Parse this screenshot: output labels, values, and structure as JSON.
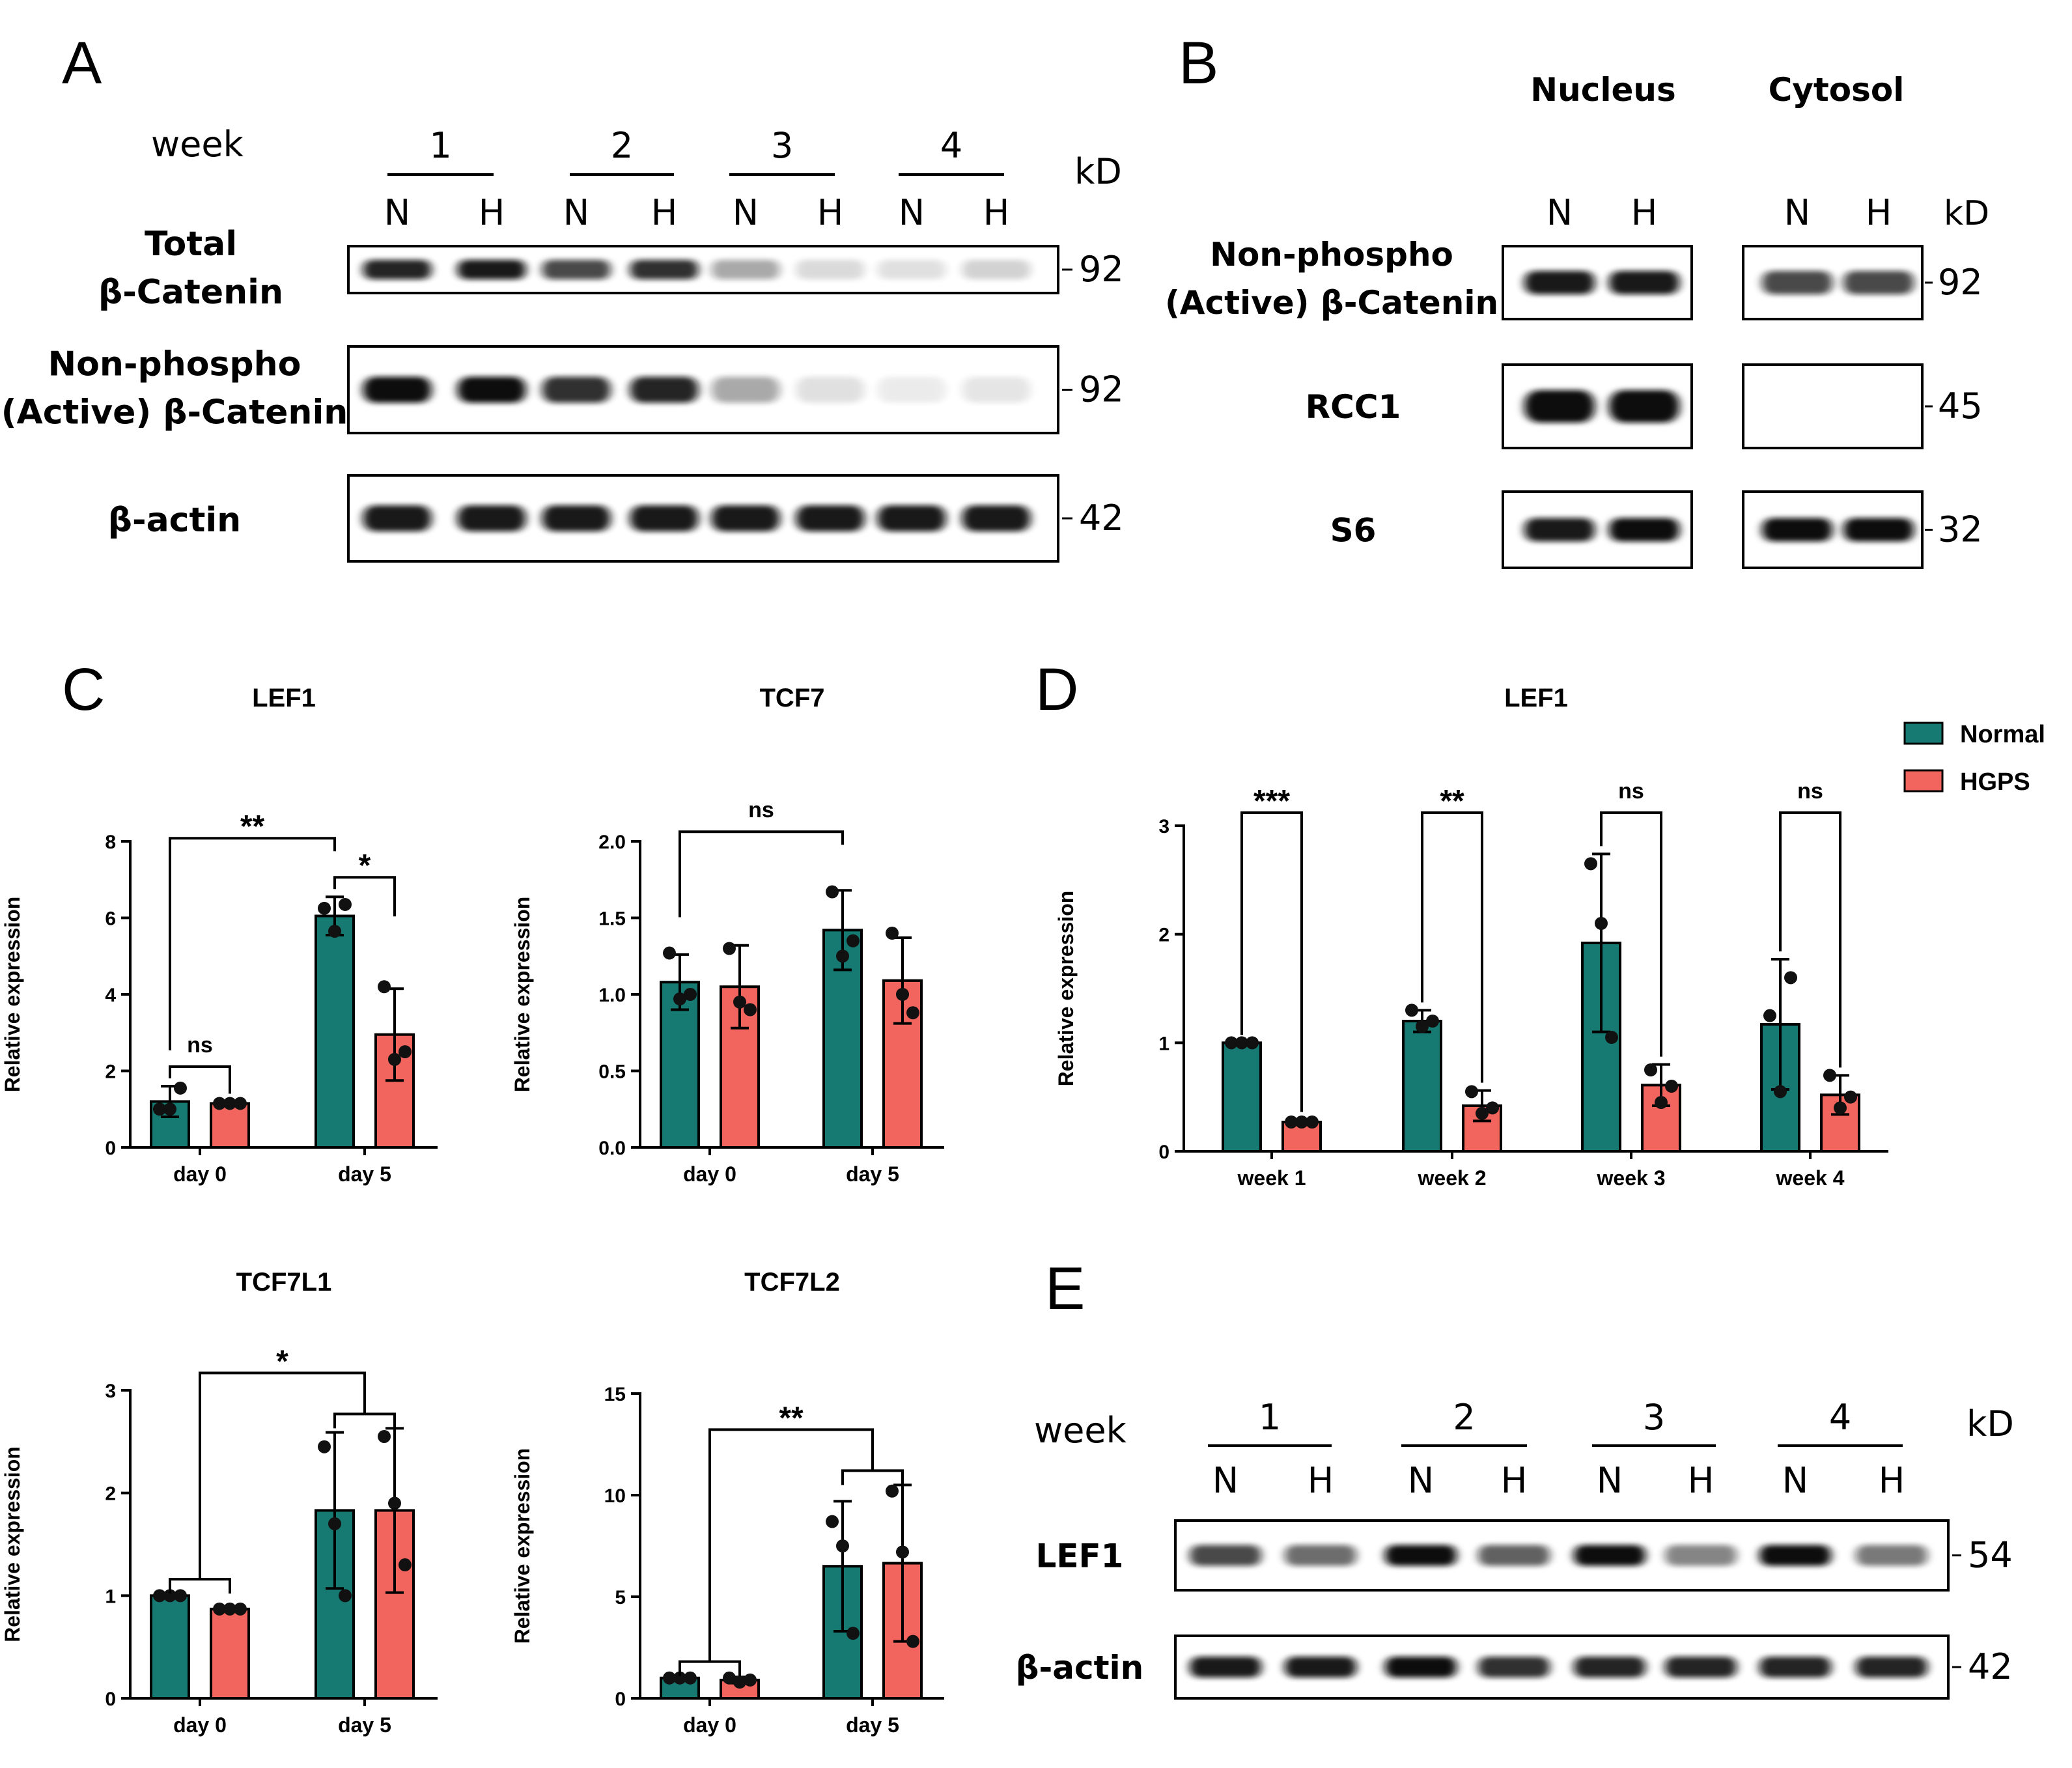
{
  "colors": {
    "normal": "#177a72",
    "hgps": "#f2645e",
    "band": "#111111",
    "axis": "#000000"
  },
  "panels": {
    "A": {
      "label": "A",
      "week_label": "week",
      "weeks": [
        "1",
        "2",
        "3",
        "4"
      ],
      "lanes": [
        "N",
        "H",
        "N",
        "H",
        "N",
        "H",
        "N",
        "H"
      ],
      "kd_label": "kD",
      "blots": [
        {
          "label_lines": [
            "Total",
            "β-Catenin"
          ],
          "kd": "92",
          "intensities": [
            0.9,
            0.95,
            0.75,
            0.85,
            0.35,
            0.15,
            0.12,
            0.18
          ]
        },
        {
          "label_lines": [
            "Non-phospho",
            "(Active) β-Catenin"
          ],
          "kd": "92",
          "intensities": [
            1.0,
            1.0,
            0.85,
            0.9,
            0.35,
            0.12,
            0.08,
            0.1
          ]
        },
        {
          "label_lines": [
            "β-actin"
          ],
          "kd": "42",
          "intensities": [
            0.95,
            0.95,
            0.95,
            0.95,
            0.95,
            0.95,
            0.95,
            0.95
          ]
        }
      ]
    },
    "B": {
      "label": "B",
      "groups": [
        "Nucleus",
        "Cytosol"
      ],
      "lanes": [
        "N",
        "H",
        "N",
        "H"
      ],
      "kd_label": "kD",
      "blots": [
        {
          "label_lines": [
            "Non-phospho",
            "(Active) β-Catenin"
          ],
          "kd": "92",
          "intensities": [
            0.95,
            0.95,
            0.75,
            0.75
          ]
        },
        {
          "label_lines": [
            "RCC1"
          ],
          "kd": "45",
          "intensities": [
            1.0,
            1.0,
            0.0,
            0.0
          ]
        },
        {
          "label_lines": [
            "S6"
          ],
          "kd": "32",
          "intensities": [
            0.95,
            1.0,
            1.0,
            1.0
          ]
        }
      ]
    },
    "C": {
      "label": "C"
    },
    "D": {
      "label": "D"
    },
    "E": {
      "label": "E",
      "week_label": "week",
      "weeks": [
        "1",
        "2",
        "3",
        "4"
      ],
      "lanes": [
        "N",
        "H",
        "N",
        "H",
        "N",
        "H",
        "N",
        "H"
      ],
      "kd_label": "kD",
      "blots": [
        {
          "label_lines": [
            "LEF1"
          ],
          "kd": "54",
          "intensities": [
            0.75,
            0.6,
            1.0,
            0.65,
            1.0,
            0.5,
            1.0,
            0.55
          ]
        },
        {
          "label_lines": [
            "β-actin"
          ],
          "kd": "42",
          "intensities": [
            0.95,
            0.95,
            1.0,
            0.85,
            0.9,
            0.9,
            0.9,
            0.9
          ]
        }
      ]
    }
  },
  "legend": {
    "entries": [
      "Normal",
      "HGPS"
    ],
    "placement": "top-right"
  },
  "chart_data": [
    {
      "type": "bar",
      "title": "LEF1",
      "panel": "C",
      "xlabel": "",
      "ylabel": "Relative expression",
      "categories": [
        "day 0",
        "day 5"
      ],
      "ylim": [
        0,
        8
      ],
      "yticks": [
        "0",
        "2",
        "4",
        "6",
        "8"
      ],
      "series": [
        {
          "name": "Normal",
          "values": [
            1.2,
            6.05
          ],
          "errors": [
            0.4,
            0.5
          ],
          "points": [
            [
              1.0,
              1.0,
              1.55
            ],
            [
              6.25,
              5.65,
              6.35
            ]
          ]
        },
        {
          "name": "HGPS",
          "values": [
            1.15,
            2.95
          ],
          "errors": [
            0.05,
            1.2
          ],
          "points": [
            [
              1.15,
              1.15,
              1.15
            ],
            [
              4.2,
              2.3,
              2.5
            ]
          ]
        }
      ],
      "comparisons": [
        {
          "label": "ns",
          "type": "within",
          "category": 0
        },
        {
          "label": "*",
          "type": "within",
          "category": 1
        },
        {
          "label": "**",
          "type": "pair",
          "from": [
            0,
            0
          ],
          "to": [
            1,
            0
          ]
        }
      ]
    },
    {
      "type": "bar",
      "title": "TCF7",
      "panel": "C",
      "xlabel": "",
      "ylabel": "Relative expression",
      "categories": [
        "day 0",
        "day 5"
      ],
      "ylim": [
        0,
        2
      ],
      "yticks": [
        "0.0",
        "0.5",
        "1.0",
        "1.5",
        "2.0"
      ],
      "series": [
        {
          "name": "Normal",
          "values": [
            1.08,
            1.42
          ],
          "errors": [
            0.18,
            0.26
          ],
          "points": [
            [
              1.27,
              0.97,
              1.0
            ],
            [
              1.67,
              1.25,
              1.35
            ]
          ]
        },
        {
          "name": "HGPS",
          "values": [
            1.05,
            1.09
          ],
          "errors": [
            0.27,
            0.28
          ],
          "points": [
            [
              1.3,
              0.95,
              0.9
            ],
            [
              1.4,
              1.0,
              0.88
            ]
          ]
        }
      ],
      "comparisons": [
        {
          "label": "ns",
          "type": "pair",
          "from": [
            0,
            0
          ],
          "to": [
            1,
            0
          ]
        }
      ]
    },
    {
      "type": "bar",
      "title": "LEF1",
      "panel": "D",
      "xlabel": "",
      "ylabel": "Relative expression",
      "categories": [
        "week 1",
        "week 2",
        "week 3",
        "week 4"
      ],
      "ylim": [
        0,
        3
      ],
      "yticks": [
        "0",
        "1",
        "2",
        "3"
      ],
      "series": [
        {
          "name": "Normal",
          "values": [
            1.0,
            1.2,
            1.92,
            1.17
          ],
          "errors": [
            0.0,
            0.1,
            0.82,
            0.6
          ],
          "points": [
            [
              1.0,
              1.0,
              1.0
            ],
            [
              1.3,
              1.15,
              1.2
            ],
            [
              2.65,
              2.1,
              1.05
            ],
            [
              1.25,
              0.55,
              1.6
            ]
          ]
        },
        {
          "name": "HGPS",
          "values": [
            0.27,
            0.42,
            0.61,
            0.52
          ],
          "errors": [
            0.02,
            0.14,
            0.19,
            0.18
          ],
          "points": [
            [
              0.27,
              0.27,
              0.27
            ],
            [
              0.55,
              0.35,
              0.4
            ],
            [
              0.75,
              0.45,
              0.6
            ],
            [
              0.7,
              0.4,
              0.5
            ]
          ]
        }
      ],
      "comparisons": [
        {
          "label": "***",
          "type": "within",
          "category": 0
        },
        {
          "label": "**",
          "type": "within",
          "category": 1
        },
        {
          "label": "ns",
          "type": "within",
          "category": 2
        },
        {
          "label": "ns",
          "type": "within",
          "category": 3
        }
      ]
    },
    {
      "type": "bar",
      "title": "TCF7L1",
      "panel": "C",
      "xlabel": "",
      "ylabel": "Relative expression",
      "categories": [
        "day 0",
        "day 5"
      ],
      "ylim": [
        0,
        3
      ],
      "yticks": [
        "0",
        "1",
        "2",
        "3"
      ],
      "series": [
        {
          "name": "Normal",
          "values": [
            1.0,
            1.83
          ],
          "errors": [
            0.02,
            0.76
          ],
          "points": [
            [
              1.0,
              1.0,
              1.0
            ],
            [
              2.45,
              1.7,
              1.0
            ]
          ]
        },
        {
          "name": "HGPS",
          "values": [
            0.87,
            1.83
          ],
          "errors": [
            0.02,
            0.8
          ],
          "points": [
            [
              0.87,
              0.87,
              0.87
            ],
            [
              2.55,
              1.9,
              1.3
            ]
          ]
        }
      ],
      "comparisons": [
        {
          "label": "*",
          "type": "group",
          "from": 0,
          "to": 1
        }
      ]
    },
    {
      "type": "bar",
      "title": "TCF7L2",
      "panel": "C",
      "xlabel": "",
      "ylabel": "Relative expression",
      "categories": [
        "day 0",
        "day 5"
      ],
      "ylim": [
        0,
        15
      ],
      "yticks": [
        "0",
        "5",
        "10",
        "15"
      ],
      "series": [
        {
          "name": "Normal",
          "values": [
            1.0,
            6.5
          ],
          "errors": [
            0.1,
            3.2
          ],
          "points": [
            [
              1.0,
              1.0,
              1.0
            ],
            [
              8.7,
              7.5,
              3.2
            ]
          ]
        },
        {
          "name": "HGPS",
          "values": [
            0.9,
            6.65
          ],
          "errors": [
            0.15,
            3.85
          ],
          "points": [
            [
              1.0,
              0.8,
              0.9
            ],
            [
              10.2,
              7.2,
              2.8
            ]
          ]
        }
      ],
      "comparisons": [
        {
          "label": "**",
          "type": "group",
          "from": 0,
          "to": 1
        }
      ]
    }
  ]
}
